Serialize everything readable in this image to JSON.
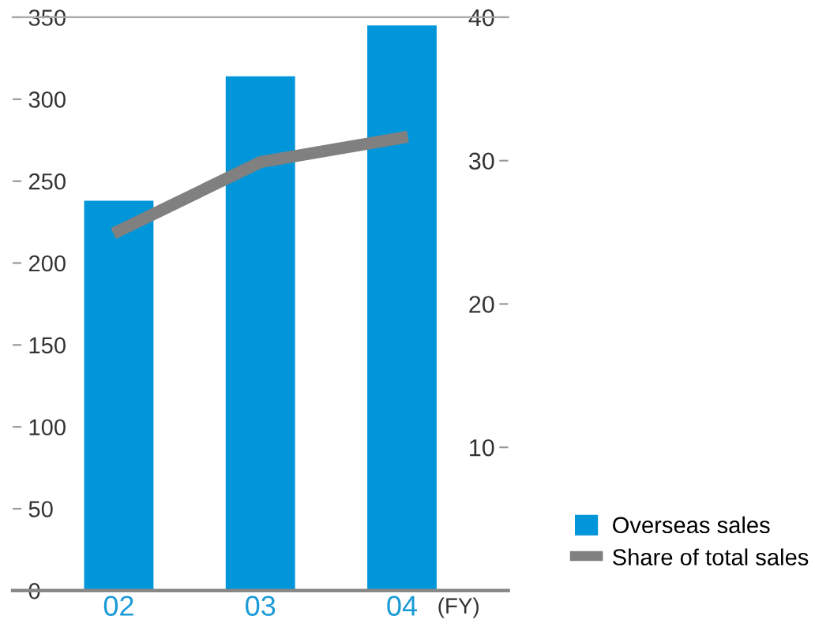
{
  "chart_data": {
    "type": "bar",
    "categories": [
      "02",
      "03",
      "04"
    ],
    "xlabel": "(FY)",
    "series": [
      {
        "name": "Overseas sales",
        "color": "#0096d9",
        "values": [
          238,
          314,
          345
        ]
      },
      {
        "name": "Share of total sales",
        "type": "line",
        "axis": "y2",
        "color": "#808080",
        "values": [
          25.1,
          29.9,
          31.6
        ]
      }
    ],
    "ylim": [
      0,
      350
    ],
    "yticks": [
      0,
      50,
      100,
      150,
      200,
      250,
      300,
      350
    ],
    "y2lim": [
      0,
      40
    ],
    "y2ticks": [
      10,
      20,
      30,
      40
    ],
    "grid": false,
    "legend": "bottom right",
    "marker": "none",
    "line_style": "solid"
  }
}
